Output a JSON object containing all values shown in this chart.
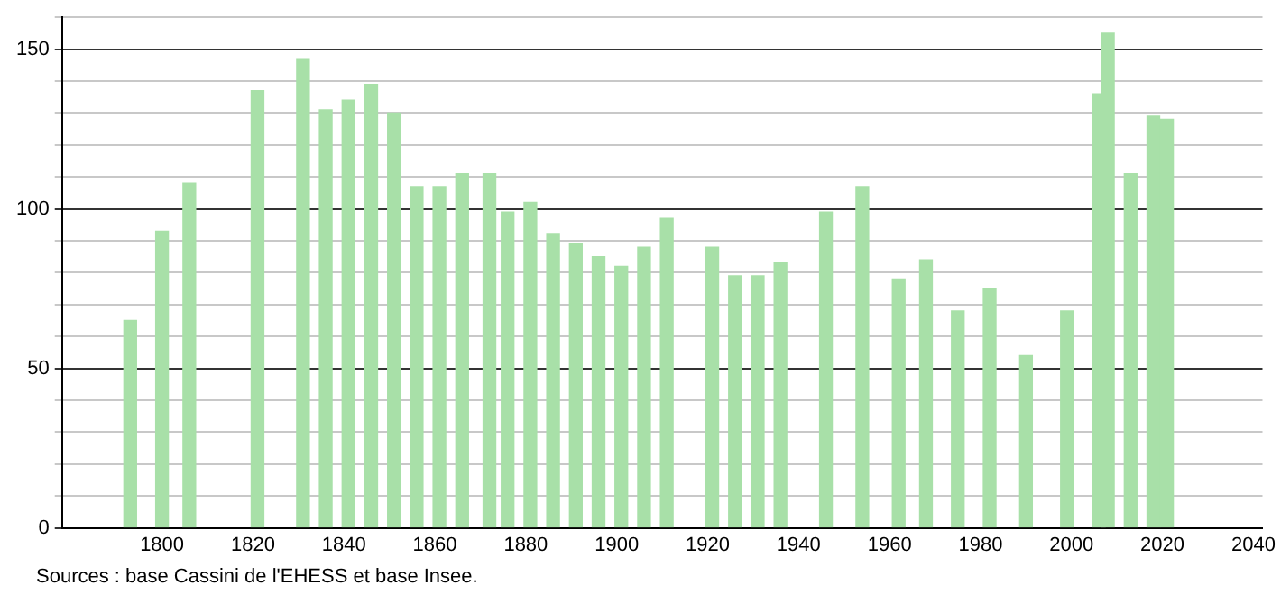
{
  "chart_data": {
    "type": "bar",
    "color": "#a8e0a8",
    "x": [
      1793,
      1800,
      1806,
      1821,
      1831,
      1836,
      1841,
      1846,
      1851,
      1856,
      1861,
      1866,
      1872,
      1876,
      1881,
      1886,
      1891,
      1896,
      1901,
      1906,
      1911,
      1921,
      1926,
      1931,
      1936,
      1946,
      1954,
      1962,
      1968,
      1975,
      1982,
      1990,
      1999,
      2006,
      2008,
      2013,
      2018,
      2021
    ],
    "values": [
      65,
      93,
      108,
      137,
      147,
      131,
      134,
      139,
      130,
      107,
      107,
      111,
      111,
      99,
      102,
      92,
      89,
      85,
      82,
      88,
      97,
      88,
      79,
      79,
      83,
      99,
      107,
      78,
      84,
      68,
      75,
      54,
      68,
      136,
      155,
      111,
      129,
      128
    ],
    "xlim": [
      1778,
      2042
    ],
    "xticks": [
      1800,
      1820,
      1840,
      1860,
      1880,
      1900,
      1920,
      1940,
      1960,
      1980,
      2000,
      2020,
      2040
    ],
    "ylim": [
      0,
      160
    ],
    "yticks": [
      0,
      {
        "value": 10,
        "label": null
      },
      {
        "value": 20,
        "label": null
      },
      {
        "value": 30,
        "label": null
      },
      {
        "value": 40,
        "label": null
      },
      50,
      {
        "value": 60,
        "label": null
      },
      {
        "value": 70,
        "label": null
      },
      {
        "value": 80,
        "label": null
      },
      {
        "value": 90,
        "label": null
      },
      100,
      {
        "value": 110,
        "label": null
      },
      {
        "value": 120,
        "label": null
      },
      {
        "value": 130,
        "label": null
      },
      {
        "value": 140,
        "label": null
      },
      150,
      {
        "value": 160,
        "label": null
      }
    ],
    "grid": "y",
    "annotations": [
      "Sources : base Cassini de l'EHESS et base Insee."
    ]
  }
}
